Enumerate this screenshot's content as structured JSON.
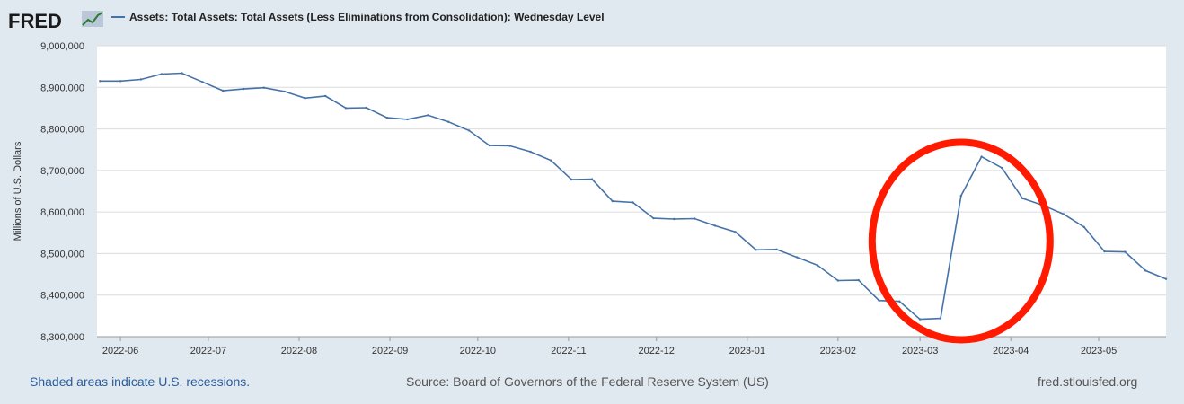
{
  "header": {
    "logo_text": "FRED",
    "logo_icon": "fred-chart-icon",
    "series_title": "Assets: Total Assets: Total Assets (Less Eliminations from Consolidation): Wednesday Level"
  },
  "footer": {
    "recession_note": "Shaded areas indicate U.S. recessions.",
    "source": "Source: Board of Governors of the Federal Reserve System (US)",
    "site": "fred.stlouisfed.org"
  },
  "colors": {
    "background": "#e1e9f0",
    "plot_bg": "#ffffff",
    "line": "#4572a7",
    "annotation": "#ff1a00",
    "link": "#2a5d9a"
  },
  "chart_data": {
    "type": "line",
    "title": "Assets: Total Assets: Total Assets (Less Eliminations from Consolidation): Wednesday Level",
    "xlabel": "",
    "ylabel": "Millions of U.S. Dollars",
    "ylim": [
      8300000,
      9000000
    ],
    "y_ticks": [
      9000000,
      8900000,
      8800000,
      8700000,
      8600000,
      8500000,
      8400000,
      8300000
    ],
    "y_tick_labels": [
      "9,000,000",
      "8,900,000",
      "8,800,000",
      "8,700,000",
      "8,600,000",
      "8,500,000",
      "8,400,000",
      "8,300,000"
    ],
    "x_tick_labels": [
      "2022-06",
      "2022-07",
      "2022-08",
      "2022-09",
      "2022-10",
      "2022-11",
      "2022-12",
      "2023-01",
      "2023-02",
      "2023-03",
      "2023-04",
      "2023-05"
    ],
    "grid": true,
    "legend": "top-left",
    "series": [
      {
        "name": "Assets: Total Assets: Total Assets (Less Eliminations from Consolidation): Wednesday Level",
        "x": [
          "2022-05-25",
          "2022-06-01",
          "2022-06-08",
          "2022-06-15",
          "2022-06-22",
          "2022-06-29",
          "2022-07-06",
          "2022-07-13",
          "2022-07-20",
          "2022-07-27",
          "2022-08-03",
          "2022-08-10",
          "2022-08-17",
          "2022-08-24",
          "2022-08-31",
          "2022-09-07",
          "2022-09-14",
          "2022-09-21",
          "2022-09-28",
          "2022-10-05",
          "2022-10-12",
          "2022-10-19",
          "2022-10-26",
          "2022-11-02",
          "2022-11-09",
          "2022-11-16",
          "2022-11-23",
          "2022-11-30",
          "2022-12-07",
          "2022-12-14",
          "2022-12-21",
          "2022-12-28",
          "2023-01-04",
          "2023-01-11",
          "2023-01-18",
          "2023-01-25",
          "2023-02-01",
          "2023-02-08",
          "2023-02-15",
          "2023-02-22",
          "2023-03-01",
          "2023-03-08",
          "2023-03-15",
          "2023-03-22",
          "2023-03-29",
          "2023-04-05",
          "2023-04-12",
          "2023-04-19",
          "2023-04-26",
          "2023-05-03",
          "2023-05-10",
          "2023-05-17",
          "2023-05-24"
        ],
        "values": [
          8915000,
          8915000,
          8919000,
          8932000,
          8934000,
          8913000,
          8892000,
          8896000,
          8899000,
          8890000,
          8874000,
          8879000,
          8850000,
          8851000,
          8827000,
          8823000,
          8833000,
          8817000,
          8796000,
          8760000,
          8759000,
          8745000,
          8724000,
          8678000,
          8679000,
          8626000,
          8623000,
          8585000,
          8583000,
          8584000,
          8567000,
          8552000,
          8509000,
          8510000,
          8491000,
          8472000,
          8435000,
          8436000,
          8387000,
          8385000,
          8342000,
          8344000,
          8639000,
          8733000,
          8706000,
          8633000,
          8616000,
          8595000,
          8564000,
          8505000,
          8504000,
          8459000,
          8439000
        ]
      }
    ],
    "annotations": [
      {
        "type": "ellipse",
        "description": "red circle highlighting March 2023 spike",
        "x_center": "2023-03-15",
        "y_center": 8530000
      }
    ]
  }
}
